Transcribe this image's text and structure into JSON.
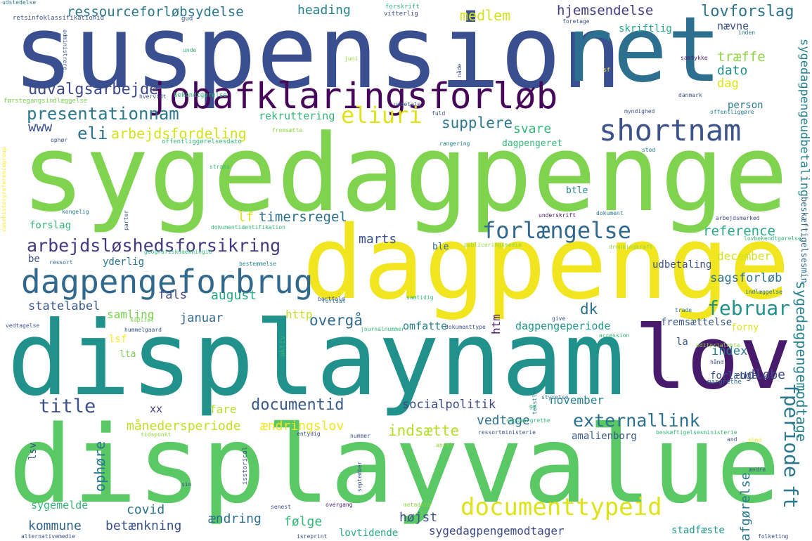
{
  "words": [
    {
      "text": "suspension",
      "color": "#3a4f8f"
    },
    {
      "text": "ret",
      "color": "#2c6f8e"
    },
    {
      "text": "jobafklaringsforløb",
      "color": "#46075a"
    },
    {
      "text": "sygedagpenge",
      "color": "#7fd34e"
    },
    {
      "text": "dagpenge",
      "color": "#f0e51f"
    },
    {
      "text": "displaynam",
      "color": "#21918c"
    },
    {
      "text": "lov",
      "color": "#481a6c"
    },
    {
      "text": "displayvalue",
      "color": "#5ac864"
    },
    {
      "text": "shortnam",
      "color": "#3b528b"
    },
    {
      "text": "dagpengeforbrug",
      "color": "#31688e"
    },
    {
      "text": "presentationnam",
      "color": "#2a788e"
    },
    {
      "text": "udvalgsarbejde",
      "color": "#3e4989"
    },
    {
      "text": "ressourceforløbsydelse",
      "color": "#2a788e"
    },
    {
      "text": "heading",
      "color": "#26828e"
    },
    {
      "text": "medlem",
      "color": "#d2e21b"
    },
    {
      "text": "hjemsendelse",
      "color": "#433e85"
    },
    {
      "text": "lovforslag",
      "color": "#2c718e"
    },
    {
      "text": "nævne",
      "color": "#3b528b"
    },
    {
      "text": "skriftlig",
      "color": "#22a884"
    },
    {
      "text": "træffe",
      "color": "#8fd744"
    },
    {
      "text": "dato",
      "color": "#21918c"
    },
    {
      "text": "dag",
      "color": "#dde318"
    },
    {
      "text": "person",
      "color": "#2a788e"
    },
    {
      "text": "eliuri",
      "color": "#dde318"
    },
    {
      "text": "supplere",
      "color": "#2a788e"
    },
    {
      "text": "svare",
      "color": "#35b779"
    },
    {
      "text": "eli",
      "color": "#2c718e"
    },
    {
      "text": "arbejdsfordeling",
      "color": "#d2e21b"
    },
    {
      "text": "www",
      "color": "#3b528b"
    },
    {
      "text": "rekruttering",
      "color": "#35b779"
    },
    {
      "text": "forlængelse",
      "color": "#31688e"
    },
    {
      "text": "arbejdsløshedsforsikring",
      "color": "#443983"
    },
    {
      "text": "timersregel",
      "color": "#2c718e"
    },
    {
      "text": "lf",
      "color": "#dde318"
    },
    {
      "text": "marts",
      "color": "#3b528b"
    },
    {
      "text": "reference",
      "color": "#26ad81"
    },
    {
      "text": "december",
      "color": "#d2e21b"
    },
    {
      "text": "sagsforløb",
      "color": "#2c718e"
    },
    {
      "text": "februar",
      "color": "#21918c"
    },
    {
      "text": "august",
      "color": "#22a884"
    },
    {
      "text": "fals",
      "color": "#3e4989"
    },
    {
      "text": "statelabel",
      "color": "#38598c"
    },
    {
      "text": "samling",
      "color": "#7ad151"
    },
    {
      "text": "januar",
      "color": "#31688e"
    },
    {
      "text": "http",
      "color": "#c2df23"
    },
    {
      "text": "overgå",
      "color": "#31688e"
    },
    {
      "text": "dk",
      "color": "#2c718e"
    },
    {
      "text": "omfatte",
      "color": "#26828e"
    },
    {
      "text": "dagpengeperiode",
      "color": "#1f988b"
    },
    {
      "text": "fremsættelse",
      "color": "#38598c"
    },
    {
      "text": "index",
      "color": "#2a788e"
    },
    {
      "text": "udløbe",
      "color": "#3e4989"
    },
    {
      "text": "forlænge",
      "color": "#3b528b"
    },
    {
      "text": "title",
      "color": "#3b528b"
    },
    {
      "text": "documentid",
      "color": "#38598c"
    },
    {
      "text": "fare",
      "color": "#b5de2b"
    },
    {
      "text": "socialpolitik",
      "color": "#3e4989"
    },
    {
      "text": "november",
      "color": "#26828e"
    },
    {
      "text": "externallink",
      "color": "#2c718e"
    },
    {
      "text": "månedersperiode",
      "color": "#c2df23"
    },
    {
      "text": "ændringslov",
      "color": "#f0e51f"
    },
    {
      "text": "indsætte",
      "color": "#b5de2b"
    },
    {
      "text": "vedtage",
      "color": "#2c718e"
    },
    {
      "text": "amalienborg",
      "color": "#38598c"
    },
    {
      "text": "documenttypeid",
      "color": "#dde318"
    },
    {
      "text": "covid",
      "color": "#2c718e"
    },
    {
      "text": "kommune",
      "color": "#31688e"
    },
    {
      "text": "betænkning",
      "color": "#3b528b"
    },
    {
      "text": "ændring",
      "color": "#2c718e"
    },
    {
      "text": "følge",
      "color": "#35b779"
    },
    {
      "text": "højst",
      "color": "#3b528b"
    },
    {
      "text": "sygedagpengemodtager",
      "color": "#3e4989"
    },
    {
      "text": "lovtidende",
      "color": "#22a884"
    },
    {
      "text": "stadfæste",
      "color": "#1f988b"
    },
    {
      "text": "sygemelde",
      "color": "#35b779"
    },
    {
      "text": "udbetaling",
      "color": "#3b528b"
    },
    {
      "text": "lsf",
      "color": "#fde725"
    },
    {
      "text": "lta",
      "color": "#7ad151"
    },
    {
      "text": "yderlig",
      "color": "#2a788e"
    },
    {
      "text": "ble",
      "color": "#31688e"
    },
    {
      "text": "btle",
      "color": "#26828e"
    },
    {
      "text": "forslag",
      "color": "#35b779"
    },
    {
      "text": "be",
      "color": "#3b528b"
    },
    {
      "text": "xx",
      "color": "#443983"
    },
    {
      "text": "la",
      "color": "#3b528b"
    },
    {
      "text": "forny",
      "color": "#dde318"
    },
    {
      "text": "ft",
      "color": "#2a788e"
    },
    {
      "text": "fperiode",
      "color": "#2a788e"
    },
    {
      "text": "sygedagpengemodtage",
      "color": "#26828e"
    },
    {
      "text": "afgørelse",
      "color": "#2a788e"
    },
    {
      "text": "sygedagpengeudbetaling",
      "color": "#26828e"
    },
    {
      "text": "beskæftigelsesmin",
      "color": "#31688e"
    },
    {
      "text": "ophøre",
      "color": "#2a788e"
    },
    {
      "text": "htm",
      "color": "#481a6c"
    },
    {
      "text": "lsv",
      "color": "#38598c"
    },
    {
      "text": "retsinfoklassifikationid",
      "color": "#3b528b"
    },
    {
      "text": "gud",
      "color": "#3b528b"
    },
    {
      "text": "forskrift",
      "color": "#35b779"
    },
    {
      "text": "vitterlig",
      "color": "#3b528b"
    },
    {
      "text": "foretage",
      "color": "#3b528b"
    },
    {
      "text": "inden",
      "color": "#2a788e"
    },
    {
      "text": "udstedelse",
      "color": "#2a788e"
    },
    {
      "text": "samtykke",
      "color": "#481a6c"
    },
    {
      "text": "bekendtgørelse",
      "color": "#35b779"
    },
    {
      "text": "danmark",
      "color": "#3b528b"
    },
    {
      "text": "offentliggøre",
      "color": "#26828e"
    },
    {
      "text": "myndighed",
      "color": "#3b528b"
    },
    {
      "text": "førstegangsindlæggelse",
      "color": "#7ad151"
    },
    {
      "text": "hvervidt",
      "color": "#3b528b"
    },
    {
      "text": "udbetale",
      "color": "#3b528b"
    },
    {
      "text": "fuld",
      "color": "#3b528b"
    },
    {
      "text": "offentliggørelsesdato",
      "color": "#35b779"
    },
    {
      "text": "fremsætte",
      "color": "#8fd744"
    },
    {
      "text": "rangering",
      "color": "#26828e"
    },
    {
      "text": "dagpengeret",
      "color": "#35b779"
    },
    {
      "text": "sted",
      "color": "#2a788e"
    },
    {
      "text": "kongelig",
      "color": "#2a788e"
    },
    {
      "text": "dokumentidentifikation",
      "color": "#35b779"
    },
    {
      "text": "underskrift",
      "color": "#481a6c"
    },
    {
      "text": "dokument",
      "color": "#2a788e"
    },
    {
      "text": "arbejdsmarked",
      "color": "#3e4989"
    },
    {
      "text": "lovbekendtgørelse",
      "color": "#35b779"
    },
    {
      "text": "publiceringsmedie",
      "color": "#8fd744"
    },
    {
      "text": "dronningkraft",
      "color": "#8fd744"
    },
    {
      "text": "geografiskdaekningid",
      "color": "#35b779"
    },
    {
      "text": "ressort",
      "color": "#31688e"
    },
    {
      "text": "bestemmelse",
      "color": "#26828e"
    },
    {
      "text": "bortfald",
      "color": "#3b528b"
    },
    {
      "text": "samtidig",
      "color": "#35b779"
    },
    {
      "text": "indlæggelse",
      "color": "#2a788e"
    },
    {
      "text": "trade",
      "color": "#2a788e"
    },
    {
      "text": "give",
      "color": "#3b528b"
    },
    {
      "text": "vedtagelse",
      "color": "#3b528b"
    },
    {
      "text": "kapitel",
      "color": "#7ad151"
    },
    {
      "text": "fortsat",
      "color": "#2a788e"
    },
    {
      "text": "journalnummer",
      "color": "#35b779"
    },
    {
      "text": "dokumenttype",
      "color": "#3b528b"
    },
    {
      "text": "accession",
      "color": "#35b779"
    },
    {
      "text": "editorialnote",
      "color": "#8fd744"
    },
    {
      "text": "hummelgaard",
      "color": "#3b528b"
    },
    {
      "text": "aktiv",
      "color": "#35b779"
    },
    {
      "text": "hånd",
      "color": "#3b528b"
    },
    {
      "text": "margrethe",
      "color": "#31688e"
    },
    {
      "text": "tekstlov",
      "color": "#2a788e"
    },
    {
      "text": "styrelse",
      "color": "#31688e"
    },
    {
      "text": "ge",
      "color": "#35b779"
    },
    {
      "text": "segimargrethe",
      "color": "#35b779"
    },
    {
      "text": "tidspunkt",
      "color": "#8fd744"
    },
    {
      "text": "entydig",
      "color": "#3b528b"
    },
    {
      "text": "nummer",
      "color": "#3b528b"
    },
    {
      "text": "ressortministerie",
      "color": "#3b528b"
    },
    {
      "text": "beskæftigelsesministerie",
      "color": "#35b779"
    },
    {
      "text": "april",
      "color": "#8fd744"
    },
    {
      "text": "and",
      "color": "#3b528b"
    },
    {
      "text": "sönd",
      "color": "#fde725"
    },
    {
      "text": "ændre",
      "color": "#3b528b"
    },
    {
      "text": "sin",
      "color": "#3b528b"
    },
    {
      "text": "september",
      "color": "#3b528b"
    },
    {
      "text": "isstorical",
      "color": "#3b528b"
    },
    {
      "text": "senest",
      "color": "#3b528b"
    },
    {
      "text": "overgang",
      "color": "#481a6c"
    },
    {
      "text": "metadata",
      "color": "#8fd744"
    },
    {
      "text": "alternativemedie",
      "color": "#3b528b"
    },
    {
      "text": "isreprint",
      "color": "#3b528b"
    },
    {
      "text": "folketing",
      "color": "#3b528b"
    },
    {
      "text": "casehistoryreferencegroup",
      "color": "#fde725"
    },
    {
      "text": "unde",
      "color": "#35b779"
    },
    {
      "text": "juni",
      "color": "#8fd744"
    },
    {
      "text": "sf",
      "color": "#fde725"
    },
    {
      "text": "straks",
      "color": "#35b779"
    },
    {
      "text": "ophør",
      "color": "#3b528b"
    },
    {
      "text": "parter",
      "color": "#3b528b"
    },
    {
      "text": "administrere",
      "color": "#3b528b"
    },
    {
      "text": "nåde",
      "color": "#3b528b"
    }
  ]
}
